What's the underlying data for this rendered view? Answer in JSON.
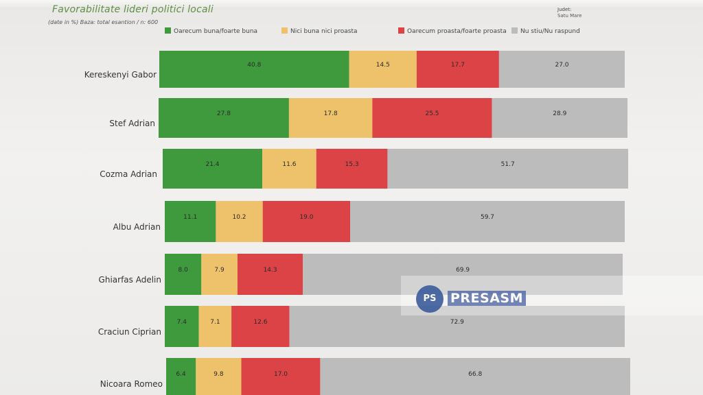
{
  "header": {
    "title": "Favorabilitate lideri politici locali",
    "subtitle": "(date in %) Baza: total esantion / n:  600",
    "judet_label": "Judet:",
    "judet_value": "Satu Mare"
  },
  "chart_data": {
    "type": "bar",
    "stacked": true,
    "orientation": "horizontal",
    "title": "Favorabilitate lideri politici locali",
    "categories": [
      "Kereskenyi Gabor",
      "Stef Adrian",
      "Cozma Adrian",
      "Albu Adrian",
      "Ghiarfas Adelin",
      "Craciun Ciprian",
      "Nicoara Romeo"
    ],
    "series": [
      {
        "name": "Oarecum buna/foarte buna",
        "color": "#3f9a3e",
        "values": [
          40.8,
          27.8,
          21.4,
          11.1,
          8.0,
          7.4,
          6.4
        ]
      },
      {
        "name": "Nici buna nici proasta",
        "color": "#eec26a",
        "values": [
          14.5,
          17.8,
          11.6,
          10.2,
          7.9,
          7.1,
          9.8
        ]
      },
      {
        "name": "Oarecum proasta/foarte proasta",
        "color": "#dc4346",
        "values": [
          17.7,
          25.5,
          15.3,
          19.0,
          14.3,
          12.6,
          17.0
        ]
      },
      {
        "name": "Nu stiu/Nu raspund",
        "color": "#bdbcbc",
        "values": [
          27.0,
          28.9,
          51.7,
          59.7,
          69.9,
          72.9,
          66.8
        ]
      }
    ],
    "legend_position": "top",
    "grid": false
  },
  "watermark": {
    "icon_text": "PS",
    "text": "PRESASM"
  }
}
